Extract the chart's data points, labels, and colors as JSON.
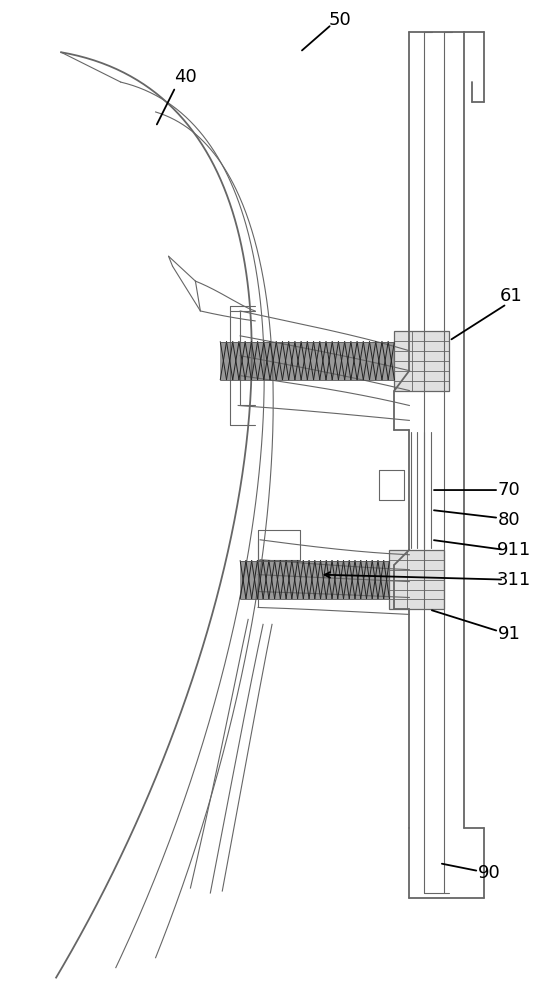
{
  "bg_color": "#ffffff",
  "line_color": "#666666",
  "dark_line": "#333333",
  "label_fontsize": 13,
  "labels": [
    "40",
    "50",
    "61",
    "70",
    "80",
    "911",
    "311",
    "91",
    "90"
  ]
}
